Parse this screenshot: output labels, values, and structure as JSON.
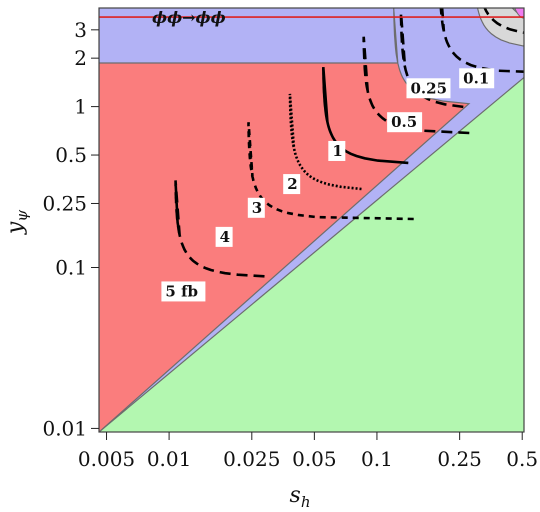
{
  "chart_data": {
    "type": "contour",
    "xlabel": "s",
    "xlabel_sub": "h",
    "ylabel": "y",
    "ylabel_sub": "ψ",
    "x_scale": "log",
    "y_scale": "log",
    "xlim": [
      0.0046,
      0.51
    ],
    "ylim": [
      0.0095,
      4.1
    ],
    "x_ticks": [
      {
        "value": 0.005,
        "label": "0.005"
      },
      {
        "value": 0.01,
        "label": "0.01"
      },
      {
        "value": 0.025,
        "label": "0.025"
      },
      {
        "value": 0.05,
        "label": "0.05"
      },
      {
        "value": 0.1,
        "label": "0.1"
      },
      {
        "value": 0.25,
        "label": "0.25"
      },
      {
        "value": 0.5,
        "label": "0.5"
      }
    ],
    "y_ticks": [
      {
        "value": 0.01,
        "label": "0.01"
      },
      {
        "value": 0.1,
        "label": "0.1"
      },
      {
        "value": 0.25,
        "label": "0.25"
      },
      {
        "value": 0.5,
        "label": "0.5"
      },
      {
        "value": 1,
        "label": "1"
      },
      {
        "value": 2,
        "label": "2"
      },
      {
        "value": 3,
        "label": "3"
      }
    ],
    "regions": [
      {
        "name": "green",
        "color": "#b3f7b0",
        "x_max": 0.51,
        "y_max": 4.1
      },
      {
        "name": "gray",
        "color": "#d8d8d8",
        "x_max": 0.38,
        "y_max": 3.1
      },
      {
        "name": "blue",
        "color": "#b2b2f5",
        "x_max": 0.29,
        "y_max": 2.25
      },
      {
        "name": "red",
        "color": "#fa7d7d",
        "x_max": 0.12,
        "y_max": 1.02
      }
    ],
    "corner_region": {
      "color": "#f07cf0",
      "x_min": 0.46,
      "y_min": 3.55
    },
    "threshold_line": {
      "label": "ϕϕ→ϕϕ",
      "y": 3.6,
      "color": "#dd2222"
    },
    "contours": [
      {
        "label": "0.1",
        "xa": 0.3,
        "ya": 2.7,
        "dash": "11 6",
        "label_x": 0.26,
        "label_y": 1.5
      },
      {
        "label": "0.25",
        "xa": 0.2,
        "ya": 1.6,
        "dash": "11 6",
        "label_x": 0.145,
        "label_y": 1.3
      },
      {
        "label": "0.5",
        "xa": 0.13,
        "ya": 0.96,
        "dash": "11 6",
        "label_x": 0.117,
        "label_y": 0.8
      },
      {
        "label": "1",
        "xa": 0.086,
        "ya": 0.68,
        "dash": "11 6",
        "label_x": 0.061,
        "label_y": 0.53
      },
      {
        "label": "2",
        "xa": 0.055,
        "ya": 0.44,
        "dash": "",
        "label_x": 0.037,
        "label_y": 0.33
      },
      {
        "label": "3",
        "xa": 0.038,
        "ya": 0.3,
        "dash": "2 2",
        "label_x": 0.025,
        "label_y": 0.235
      },
      {
        "label": "4",
        "xa": 0.024,
        "ya": 0.2,
        "dash": "6 5",
        "label_x": 0.0175,
        "label_y": 0.155
      },
      {
        "label": "5 fb",
        "xa": 0.0107,
        "ya": 0.087,
        "dash": "11 6",
        "label_x": 0.0096,
        "label_y": 0.071
      }
    ]
  }
}
